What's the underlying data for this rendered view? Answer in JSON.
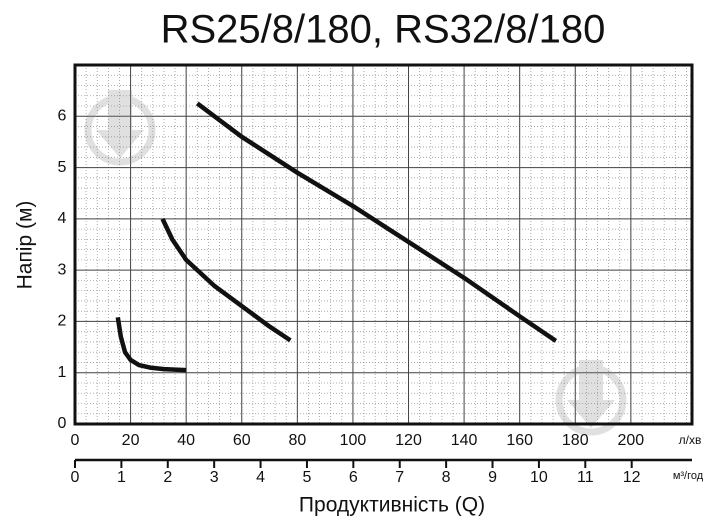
{
  "chart_data": {
    "type": "line",
    "title": "RS25/8/180, RS32/8/180",
    "x_label": "Продуктивність (Q)",
    "y_label": "Напір (м)",
    "x_unit": "л/хв",
    "x2_unit": "м³/год",
    "xlim": [
      0,
      222
    ],
    "xticks": [
      0,
      20,
      40,
      60,
      80,
      100,
      120,
      140,
      160,
      180,
      200
    ],
    "x2lim": [
      0,
      13.3
    ],
    "x2ticks": [
      0,
      1,
      2,
      3,
      4,
      5,
      6,
      7,
      8,
      9,
      10,
      11,
      12
    ],
    "ylim": [
      0,
      7
    ],
    "yticks": [
      0,
      1,
      2,
      3,
      4,
      5,
      6
    ],
    "grid": true,
    "minor_divisions": 5,
    "series": [
      {
        "color": "#111111",
        "x": [
          15.4,
          16.5,
          18,
          20,
          23,
          27,
          32,
          40
        ],
        "values": [
          2.08,
          1.7,
          1.4,
          1.25,
          1.15,
          1.1,
          1.07,
          1.05
        ]
      },
      {
        "color": "#111111",
        "x": [
          31.5,
          35,
          40,
          50,
          60,
          70,
          77.5
        ],
        "values": [
          4.0,
          3.6,
          3.2,
          2.7,
          2.3,
          1.9,
          1.63
        ]
      },
      {
        "color": "#111111",
        "x": [
          44,
          60,
          80,
          100,
          120,
          140,
          160,
          173
        ],
        "values": [
          6.25,
          5.6,
          4.9,
          4.25,
          3.55,
          2.85,
          2.1,
          1.62
        ]
      }
    ]
  }
}
